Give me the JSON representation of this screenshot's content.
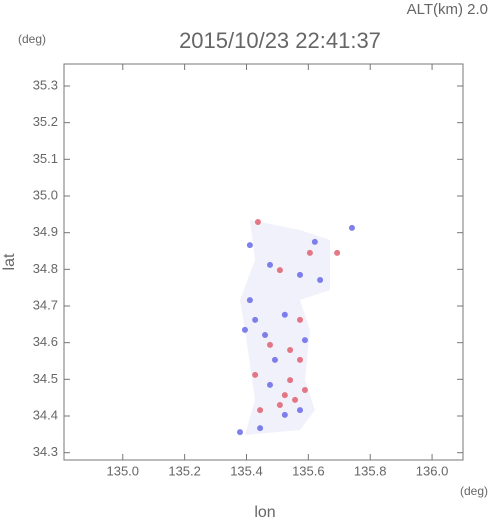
{
  "chart_data": {
    "type": "scatter",
    "title": "2015/10/23 22:41:37",
    "annotation": "ALT(km) 2.0",
    "y_unit": "(deg)",
    "x_unit": "(deg)",
    "x_label": "lon",
    "y_label": "lat",
    "xlim": [
      134.81,
      136.1
    ],
    "ylim": [
      34.28,
      35.36
    ],
    "xticks": [
      {
        "value": 135.0,
        "label": "135.0"
      },
      135.2,
      135.4,
      135.6,
      135.8,
      {
        "value": 136.0,
        "label": "136.0"
      }
    ],
    "yticks": [
      34.3,
      34.4,
      34.5,
      34.6,
      34.7,
      34.8,
      34.9,
      {
        "value": 35.0,
        "label": "35.0"
      },
      35.1,
      35.2,
      35.3
    ],
    "series": [
      {
        "color": "#e06070",
        "x": [
          135.437,
          135.605,
          135.693,
          135.508,
          135.573,
          135.476,
          135.541,
          135.573,
          135.428,
          135.524,
          135.444,
          135.508,
          135.557,
          135.589,
          135.541
        ],
        "values": [
          34.929,
          34.845,
          34.845,
          34.798,
          34.662,
          34.594,
          34.58,
          34.553,
          34.512,
          34.457,
          34.416,
          34.43,
          34.444,
          34.471,
          34.498
        ]
      },
      {
        "color": "#6a6ae8",
        "x": [
          135.411,
          135.621,
          135.741,
          135.476,
          135.573,
          135.428,
          135.524,
          135.46,
          135.589,
          135.492,
          135.395,
          135.476,
          135.573,
          135.444,
          135.524,
          135.379,
          135.638,
          135.411
        ],
        "values": [
          34.866,
          34.875,
          34.913,
          34.812,
          34.785,
          34.662,
          34.676,
          34.621,
          34.607,
          34.553,
          34.635,
          34.485,
          34.416,
          34.367,
          34.403,
          34.356,
          34.771,
          34.716
        ]
      }
    ]
  }
}
